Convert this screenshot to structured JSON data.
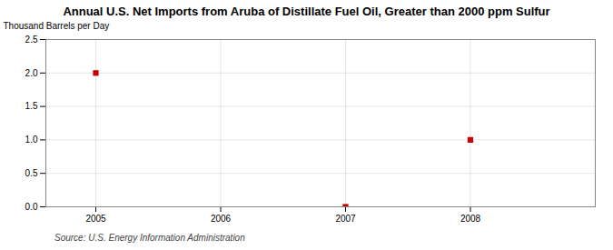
{
  "chart_data": {
    "type": "scatter",
    "title": "Annual U.S. Net Imports from Aruba of Distillate Fuel Oil, Greater than 2000 ppm Sulfur",
    "ylabel": "Thousand Barrels per Day",
    "source": "Source: U.S. Energy Information Administration",
    "x": [
      2005,
      2007,
      2008
    ],
    "values": [
      2.0,
      0.0,
      1.0
    ],
    "color": "#cc0000",
    "marker": "square",
    "xlim": [
      2004.6,
      2009.0
    ],
    "xticks": [
      2005,
      2006,
      2007,
      2008
    ],
    "ylim": [
      0.0,
      2.5
    ],
    "yticks": [
      {
        "value": 0.0,
        "label": "0.0"
      },
      0.5,
      {
        "value": 1.0,
        "label": "1.0"
      },
      1.5,
      {
        "value": 2.0,
        "label": "2.0"
      },
      2.5
    ],
    "grid": true
  }
}
